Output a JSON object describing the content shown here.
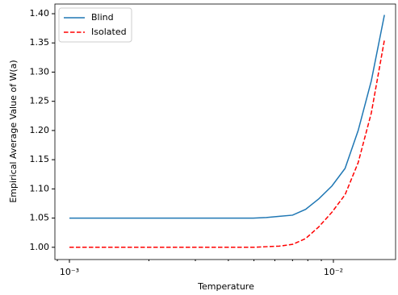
{
  "chart_data": {
    "type": "line",
    "x_label": "Temperature",
    "y_label": "Empirical Average Value of W(a)",
    "x": [
      0.001,
      0.0011213,
      0.0012573,
      0.0014098,
      0.0015808,
      0.0017725,
      0.0019875,
      0.0022286,
      0.0024989,
      0.002802,
      0.0031419,
      0.003523,
      0.0039503,
      0.0044295,
      0.0049668,
      0.0055693,
      0.0062448,
      0.0070023,
      0.0078517,
      0.0088041,
      0.009872,
      0.011069,
      0.012412,
      0.013918,
      0.015606
    ],
    "series": [
      {
        "name": "Blind",
        "color": "#1f77b4",
        "dash": "solid",
        "values": [
          1.05,
          1.05,
          1.05,
          1.05,
          1.05,
          1.05,
          1.05,
          1.05,
          1.05,
          1.05,
          1.05,
          1.05,
          1.05,
          1.05,
          1.05,
          1.051,
          1.053,
          1.055,
          1.065,
          1.083,
          1.105,
          1.135,
          1.2,
          1.285,
          1.398
        ]
      },
      {
        "name": "Isolated",
        "color": "#ff0000",
        "dash": "dashed",
        "values": [
          1.0,
          1.0,
          1.0,
          1.0,
          1.0,
          1.0,
          1.0,
          1.0,
          1.0,
          1.0,
          1.0,
          1.0,
          1.0,
          1.0,
          1.0,
          1.001,
          1.002,
          1.005,
          1.015,
          1.035,
          1.06,
          1.09,
          1.145,
          1.23,
          1.355
        ]
      }
    ],
    "xscale": "log",
    "xlim": [
      0.000881,
      0.0172
    ],
    "xticks": [
      {
        "value": 0.001,
        "label": "10⁻³"
      },
      {
        "value": 0.01,
        "label": "10⁻²"
      }
    ],
    "xminorticks": [
      0.0009,
      0.002,
      0.003,
      0.004,
      0.005,
      0.006,
      0.007,
      0.008,
      0.009
    ],
    "ylim": [
      0.979,
      1.4166
    ],
    "yticks": [
      {
        "value": 1.0,
        "label": "1.00"
      },
      {
        "value": 1.05,
        "label": "1.05"
      },
      {
        "value": 1.1,
        "label": "1.10"
      },
      {
        "value": 1.15,
        "label": "1.15"
      },
      {
        "value": 1.2,
        "label": "1.20"
      },
      {
        "value": 1.25,
        "label": "1.25"
      },
      {
        "value": 1.3,
        "label": "1.30"
      },
      {
        "value": 1.35,
        "label": "1.35"
      },
      {
        "value": 1.4,
        "label": "1.40"
      }
    ],
    "legend": "upper left"
  }
}
